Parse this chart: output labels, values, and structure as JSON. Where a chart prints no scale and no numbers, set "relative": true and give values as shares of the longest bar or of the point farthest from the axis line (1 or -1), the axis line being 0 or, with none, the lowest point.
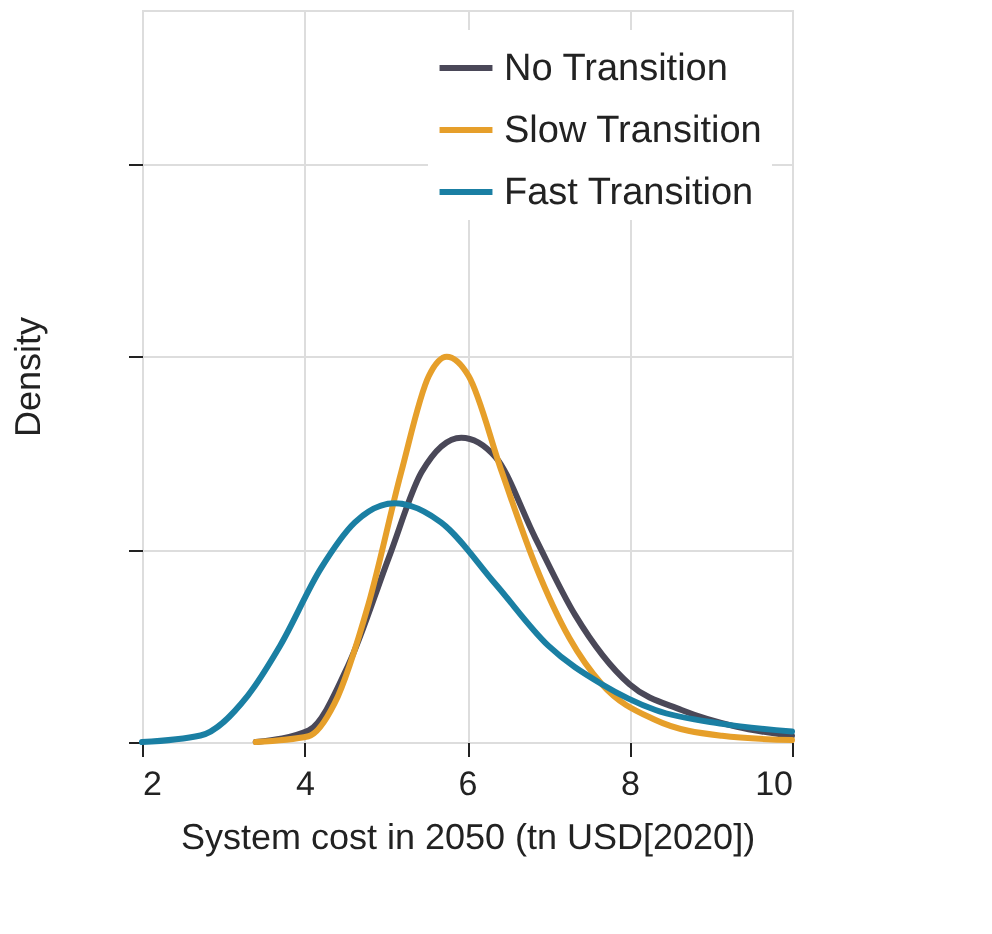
{
  "chart_data": {
    "type": "line",
    "xlabel": "System cost in 2050 (tn USD[2020])",
    "ylabel": "Density",
    "relative": true,
    "xlim": [
      2,
      10
    ],
    "xticks": [
      2,
      4,
      6,
      8,
      10
    ],
    "grid": true,
    "legend": "top right",
    "tick_labels": "x",
    "marker": "none",
    "line_style": "solid",
    "series": [
      {
        "name": "No Transition",
        "color": "#4a4858",
        "x": [
          3.4,
          4.05,
          4.54,
          5.04,
          5.44,
          5.93,
          6.35,
          6.84,
          7.33,
          8.0,
          8.64,
          9.31,
          10
        ],
        "values": [
          0,
          0.03,
          0.2,
          0.48,
          0.7,
          0.79,
          0.74,
          0.53,
          0.33,
          0.15,
          0.083,
          0.04,
          0.016
        ]
      },
      {
        "name": "Slow Transition",
        "color": "#e69f2a",
        "x": [
          3.4,
          4.05,
          4.37,
          4.79,
          5.19,
          5.53,
          5.75,
          6.02,
          6.43,
          6.84,
          7.26,
          7.66,
          8.32,
          9.14,
          10
        ],
        "values": [
          0,
          0.015,
          0.1,
          0.36,
          0.7,
          0.95,
          1.0,
          0.95,
          0.7,
          0.46,
          0.27,
          0.15,
          0.057,
          0.016,
          0.005
        ]
      },
      {
        "name": "Fast Transition",
        "color": "#1a7fa3",
        "x": [
          2,
          2.72,
          3.3,
          3.7,
          4.2,
          4.62,
          5.11,
          5.68,
          6.35,
          7.0,
          7.66,
          8.32,
          9.14,
          10
        ],
        "values": [
          0,
          0.017,
          0.12,
          0.25,
          0.45,
          0.57,
          0.62,
          0.57,
          0.41,
          0.25,
          0.15,
          0.083,
          0.047,
          0.027
        ]
      }
    ]
  }
}
